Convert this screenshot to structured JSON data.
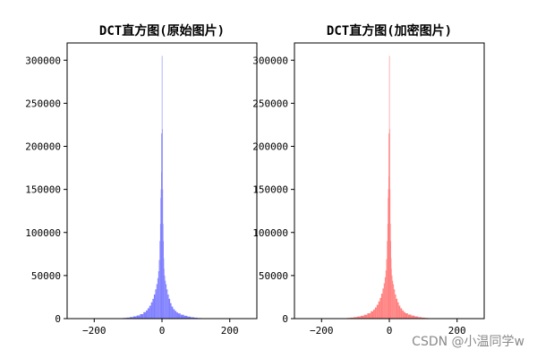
{
  "chart_data": [
    {
      "type": "bar",
      "title": "DCT直方图(原始图片)",
      "color": "#7f7fff",
      "xlim": [
        -280,
        280
      ],
      "ylim": [
        0,
        320000
      ],
      "xticks": [
        -200,
        0,
        200
      ],
      "yticks": [
        0,
        50000,
        100000,
        150000,
        200000,
        250000,
        300000
      ],
      "x": [
        -120,
        -110,
        -100,
        -90,
        -80,
        -70,
        -60,
        -50,
        -45,
        -40,
        -35,
        -30,
        -26,
        -22,
        -18,
        -15,
        -12,
        -10,
        -8,
        -6,
        -5,
        -4,
        -3,
        -2,
        -1,
        0,
        1,
        2,
        3,
        4,
        5,
        6,
        8,
        10,
        12,
        15,
        18,
        22,
        26,
        30,
        35,
        40,
        45,
        50,
        60,
        70,
        80,
        90,
        100,
        110,
        120
      ],
      "values": [
        500,
        800,
        1200,
        1800,
        2600,
        3600,
        5200,
        7500,
        9500,
        12000,
        15000,
        19000,
        23000,
        28000,
        34000,
        40000,
        47000,
        55000,
        68000,
        90000,
        110000,
        140000,
        150000,
        215000,
        170000,
        305000,
        220000,
        150000,
        110000,
        90000,
        70000,
        58000,
        50000,
        44000,
        40000,
        34000,
        28000,
        23000,
        18000,
        14000,
        11000,
        9000,
        7200,
        6000,
        4500,
        3300,
        2300,
        1600,
        1100,
        700,
        400
      ]
    },
    {
      "type": "bar",
      "title": "DCT直方图(加密图片)",
      "color": "#ff7f7f",
      "xlim": [
        -280,
        280
      ],
      "ylim": [
        0,
        320000
      ],
      "xticks": [
        -200,
        0,
        200
      ],
      "yticks": [
        0,
        50000,
        100000,
        150000,
        200000,
        250000,
        300000
      ],
      "x": [
        -120,
        -110,
        -100,
        -90,
        -80,
        -70,
        -60,
        -50,
        -45,
        -40,
        -35,
        -30,
        -26,
        -22,
        -18,
        -15,
        -12,
        -10,
        -8,
        -6,
        -5,
        -4,
        -3,
        -2,
        -1,
        0,
        1,
        2,
        3,
        4,
        5,
        6,
        8,
        10,
        12,
        15,
        18,
        22,
        26,
        30,
        35,
        40,
        45,
        50,
        60,
        70,
        80,
        90,
        100,
        110,
        120
      ],
      "values": [
        800,
        1200,
        1700,
        2400,
        3300,
        4500,
        6200,
        8500,
        10500,
        13000,
        16000,
        20000,
        24000,
        29000,
        35000,
        41000,
        48000,
        56000,
        69000,
        90000,
        110000,
        140000,
        150000,
        215000,
        165000,
        305000,
        220000,
        150000,
        110000,
        90000,
        70000,
        58000,
        50000,
        44000,
        40000,
        34000,
        28000,
        23000,
        19000,
        15000,
        12000,
        9500,
        7500,
        6200,
        4700,
        3500,
        2500,
        1700,
        1200,
        800,
        500
      ]
    }
  ],
  "watermark": "CSDN @小温同学w"
}
